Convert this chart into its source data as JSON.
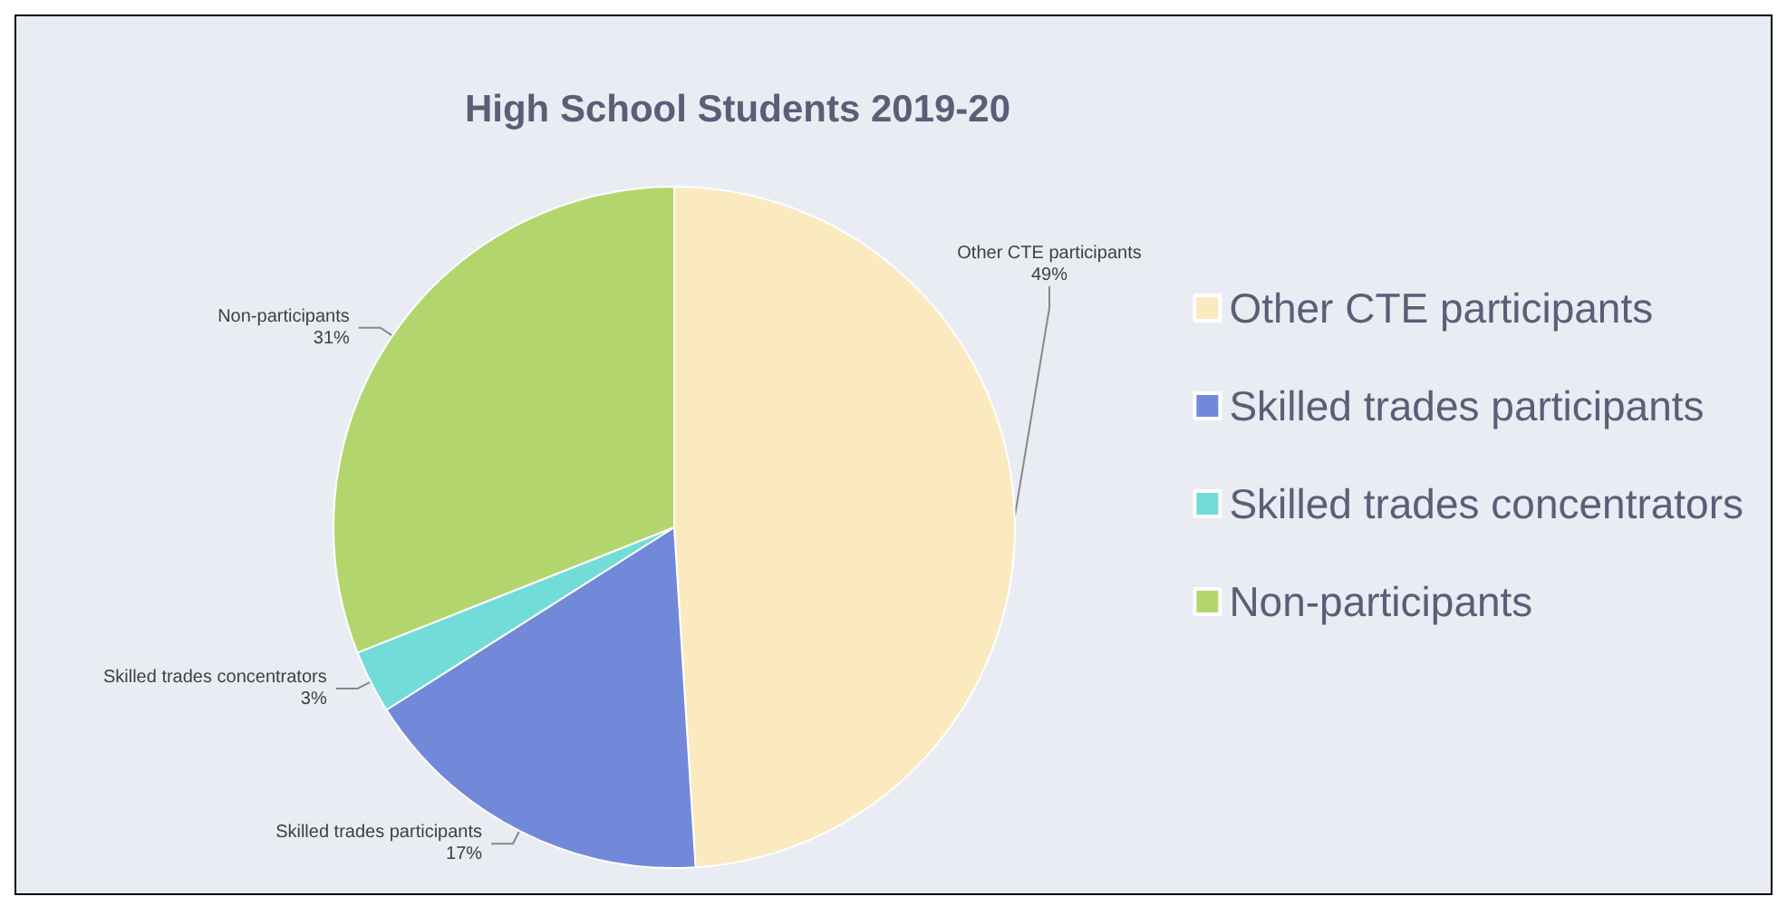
{
  "chart_data": {
    "type": "pie",
    "title": "High School Students 2019-20",
    "categories": [
      "Other CTE participants",
      "Skilled trades participants",
      "Skilled trades concentrators",
      "Non-participants"
    ],
    "values": [
      49,
      17,
      3,
      31
    ],
    "colors": [
      "#fbe9c0",
      "#7189d8",
      "#72dcd8",
      "#b3d56e"
    ],
    "value_labels": [
      "49%",
      "17%",
      "3%",
      "31%"
    ],
    "legend": "right"
  }
}
